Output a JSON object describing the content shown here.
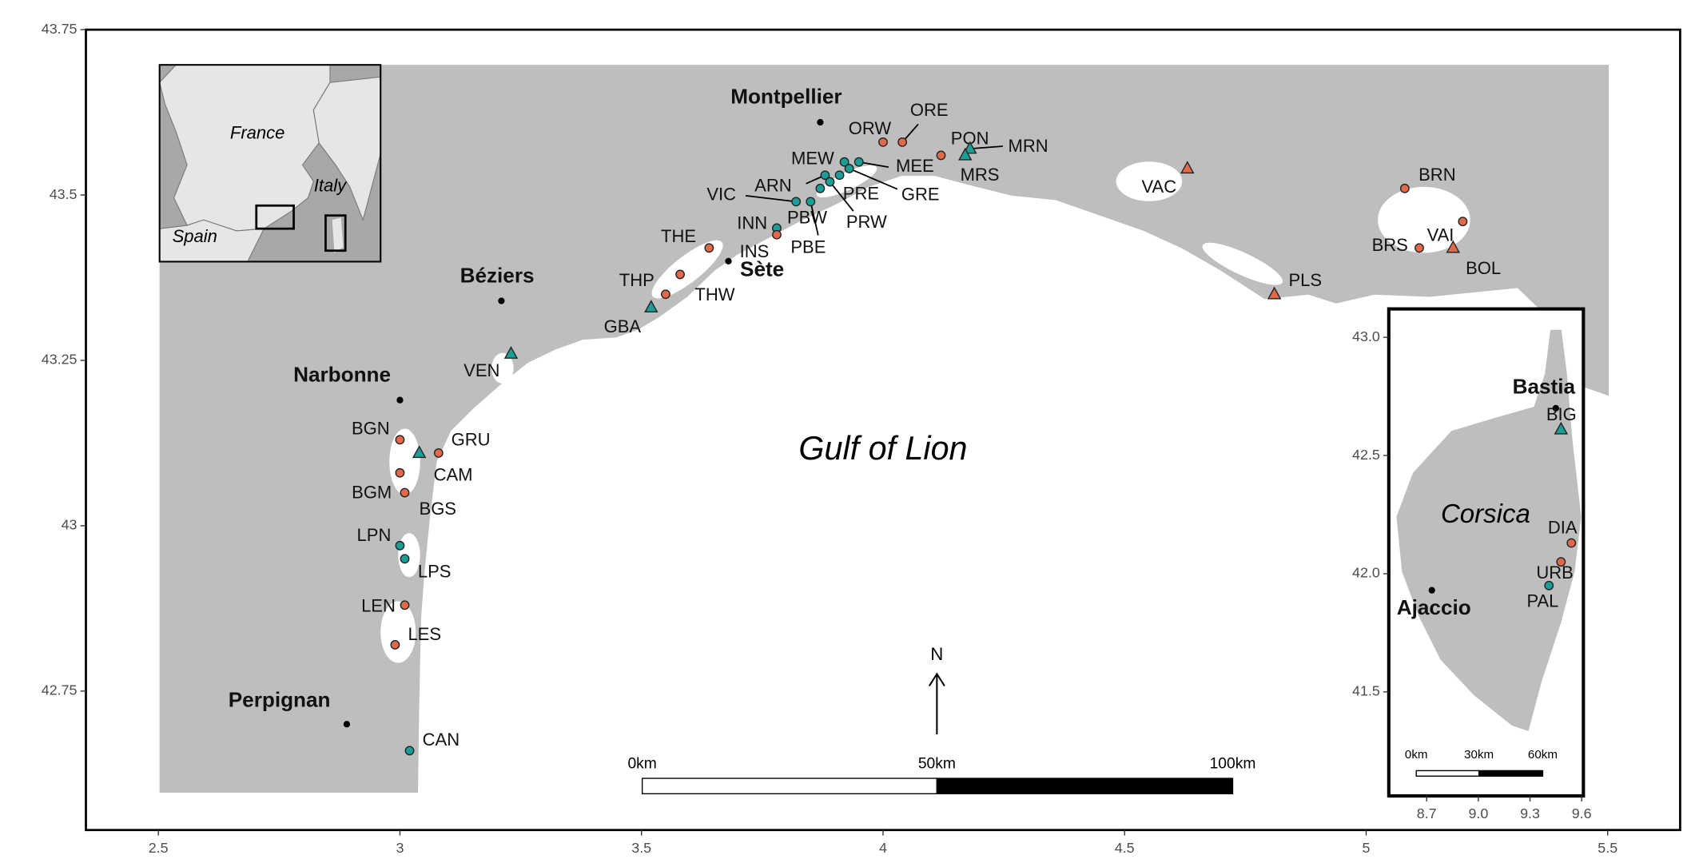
{
  "chart_data": [
    {
      "type": "map",
      "annotation": "Gulf of Lion",
      "xlim": [
        2.35,
        5.65
      ],
      "ylim": [
        42.54,
        43.75
      ],
      "xticks": [
        2.5,
        3,
        3.5,
        4,
        4.5,
        5,
        5.5
      ],
      "yticks": [
        42.75,
        43,
        43.25,
        43.5,
        43.75
      ],
      "sites": {
        "labels": [
          "ORE",
          "ORW",
          "PON",
          "MRN",
          "MRS",
          "MEE",
          "MEW",
          "GRE",
          "PRE",
          "ARN",
          "PRW",
          "PBW",
          "PBE",
          "VIC",
          "INN",
          "INS",
          "THE",
          "THP",
          "THW",
          "GBA",
          "VEN",
          "BGN",
          "GRU",
          "CAM",
          "BGM",
          "BGS",
          "LPN",
          "LPS",
          "LEN",
          "LES",
          "CAN",
          "VAC",
          "PLS",
          "BRN",
          "BRS",
          "VAI",
          "BOL"
        ],
        "x": [
          4.04,
          4.0,
          4.12,
          4.18,
          4.17,
          3.95,
          3.92,
          3.93,
          3.91,
          3.88,
          3.89,
          3.87,
          3.85,
          3.82,
          3.78,
          3.78,
          3.64,
          3.58,
          3.55,
          3.52,
          3.23,
          3.0,
          3.08,
          3.04,
          3.0,
          3.01,
          3.0,
          3.01,
          3.01,
          2.99,
          3.02,
          4.63,
          4.81,
          5.08,
          5.11,
          5.2,
          5.18
        ],
        "y": [
          43.58,
          43.58,
          43.56,
          43.57,
          43.56,
          43.55,
          43.55,
          43.54,
          43.53,
          43.53,
          43.52,
          43.51,
          43.49,
          43.49,
          43.45,
          43.44,
          43.42,
          43.38,
          43.35,
          43.33,
          43.26,
          43.13,
          43.11,
          43.11,
          43.08,
          43.05,
          42.97,
          42.95,
          42.88,
          42.82,
          42.66,
          43.54,
          43.35,
          43.51,
          43.42,
          43.46,
          43.42
        ],
        "markers": [
          "circle",
          "circle",
          "circle",
          "triangle",
          "triangle",
          "circle",
          "circle",
          "circle",
          "circle",
          "circle",
          "circle",
          "circle",
          "circle",
          "circle",
          "circle",
          "circle",
          "circle",
          "circle",
          "circle",
          "triangle",
          "triangle",
          "circle",
          "circle",
          "triangle",
          "circle",
          "circle",
          "circle",
          "circle",
          "circle",
          "circle",
          "circle",
          "triangle",
          "triangle",
          "circle",
          "circle",
          "circle",
          "triangle"
        ],
        "colors": [
          "#e0694a",
          "#e0694a",
          "#e0694a",
          "#1b9e98",
          "#1b9e98",
          "#1b9e98",
          "#1b9e98",
          "#1b9e98",
          "#1b9e98",
          "#1b9e98",
          "#1b9e98",
          "#1b9e98",
          "#1b9e98",
          "#1b9e98",
          "#1b9e98",
          "#e0694a",
          "#e0694a",
          "#e0694a",
          "#e0694a",
          "#1b9e98",
          "#1b9e98",
          "#e0694a",
          "#e0694a",
          "#1b9e98",
          "#e0694a",
          "#e0694a",
          "#1b9e98",
          "#1b9e98",
          "#e0694a",
          "#e0694a",
          "#1b9e98",
          "#e0694a",
          "#e0694a",
          "#e0694a",
          "#e0694a",
          "#e0694a",
          "#e0694a"
        ]
      },
      "cities": {
        "labels": [
          "Montpellier",
          "Sète",
          "Béziers",
          "Narbonne",
          "Perpignan"
        ],
        "x": [
          3.87,
          3.68,
          3.21,
          3.0,
          2.89
        ],
        "y": [
          43.61,
          43.4,
          43.34,
          43.19,
          42.7
        ]
      },
      "scale_bar": [
        "0km",
        "50km",
        "100km"
      ],
      "north": "N",
      "locator_labels": [
        "France",
        "Italy",
        "Spain"
      ]
    },
    {
      "type": "map",
      "annotation": "Corsica",
      "xlim": [
        8.48,
        9.61
      ],
      "ylim": [
        41.06,
        43.12
      ],
      "xticks": [
        8.7,
        {
          "value": 9,
          "label": "9.0"
        },
        9.3,
        9.6
      ],
      "yticks": [
        41.5,
        {
          "value": 42,
          "label": "42.0"
        },
        42.5,
        {
          "value": 43,
          "label": "43.0"
        }
      ],
      "sites": {
        "labels": [
          "BIG",
          "DIA",
          "URB",
          "PAL"
        ],
        "x": [
          9.48,
          9.54,
          9.48,
          9.41
        ],
        "y": [
          42.61,
          42.13,
          42.05,
          41.95
        ],
        "markers": [
          "triangle",
          "circle",
          "circle",
          "circle"
        ],
        "colors": [
          "#1b9e98",
          "#e0694a",
          "#e0694a",
          "#1b9e98"
        ]
      },
      "cities": {
        "labels": [
          "Bastia",
          "Ajaccio"
        ],
        "x": [
          9.45,
          8.73
        ],
        "y": [
          42.7,
          41.93
        ]
      },
      "scale_bar": [
        "0km",
        "30km",
        "60km"
      ]
    }
  ]
}
